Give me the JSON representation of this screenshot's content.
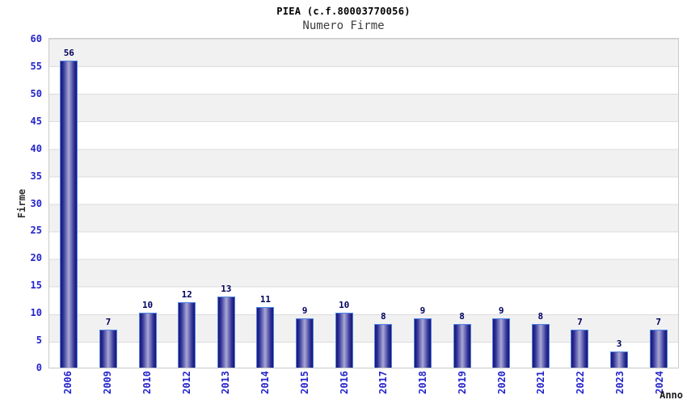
{
  "chart_data": {
    "type": "bar",
    "title": "PIEA (c.f.80003770056)",
    "subtitle": "Numero Firme",
    "xlabel": "Anno",
    "ylabel": "Firme",
    "categories": [
      "2006",
      "2009",
      "2010",
      "2012",
      "2013",
      "2014",
      "2015",
      "2016",
      "2017",
      "2018",
      "2019",
      "2020",
      "2021",
      "2022",
      "2023",
      "2024"
    ],
    "values": [
      56,
      7,
      10,
      12,
      13,
      11,
      9,
      10,
      8,
      9,
      8,
      9,
      8,
      7,
      3,
      7
    ],
    "ylim": [
      0,
      60
    ],
    "yticks": [
      0,
      5,
      10,
      15,
      20,
      25,
      30,
      35,
      40,
      45,
      50,
      55,
      60
    ],
    "grid": "horizontal alternating bands every 5 units",
    "legend": "none",
    "x_tick_rotation": -90,
    "colors": {
      "bar_edge": "#17176b",
      "bar_mid": "#30309a",
      "bar_center": "#a9a9d4",
      "bar_border": "#4f85e6",
      "tick_label": "#2424cc",
      "value_label": "#000060",
      "band_gray": "#f1f1f1",
      "band_white": "#ffffff",
      "plot_border": "#c9c9c9",
      "background": "#ffffff"
    }
  }
}
